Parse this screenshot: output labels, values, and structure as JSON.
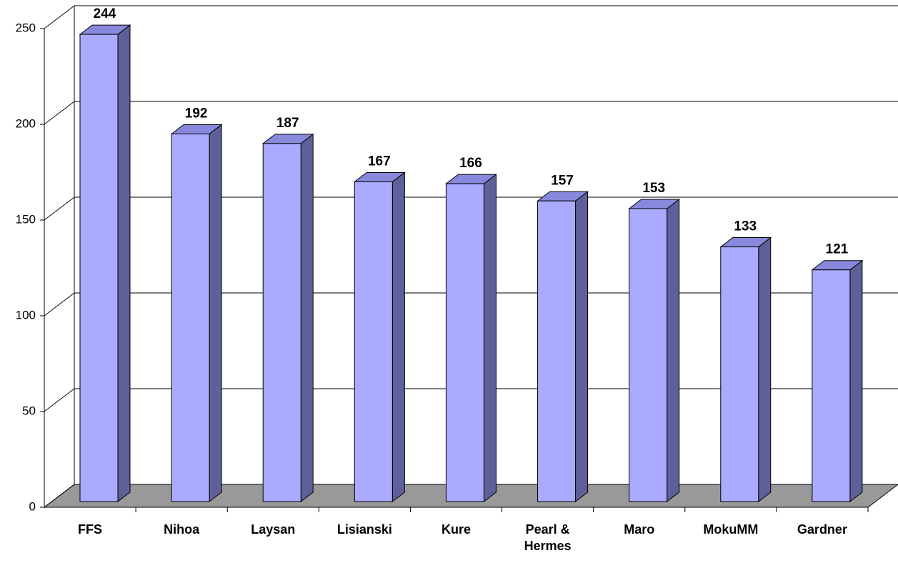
{
  "chart_data": {
    "type": "bar3d",
    "categories": [
      "FFS",
      "Nihoa",
      "Laysan",
      "Lisianski",
      "Kure",
      "Pearl & Hermes",
      "Maro",
      "MokuMM",
      "Gardner"
    ],
    "values": [
      244,
      192,
      187,
      167,
      166,
      157,
      153,
      133,
      121
    ],
    "color": "#aaaaff",
    "ylim": [
      0,
      250
    ],
    "yticks": [
      0,
      50,
      100,
      150,
      200,
      250
    ],
    "grid": true
  }
}
